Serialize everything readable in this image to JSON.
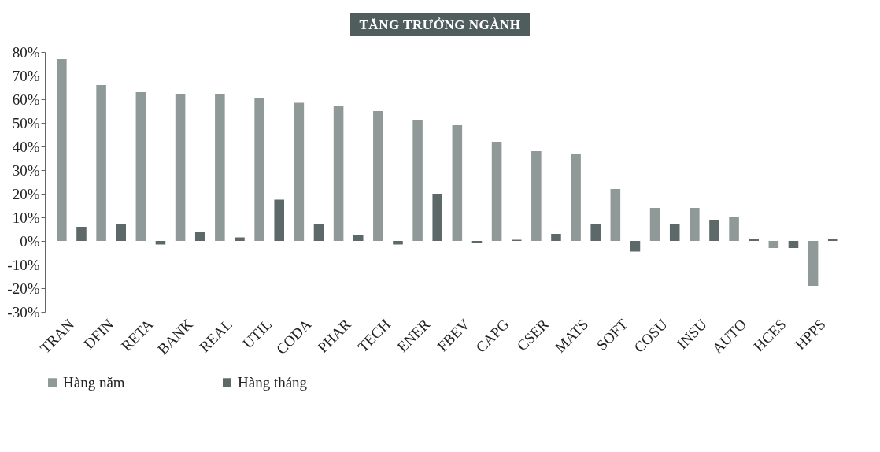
{
  "chart_data": {
    "type": "bar",
    "title": "TĂNG TRƯỞNG NGÀNH",
    "categories": [
      "TRAN",
      "DFIN",
      "RETA",
      "BANK",
      "REAL",
      "UTIL",
      "CODA",
      "PHAR",
      "TECH",
      "ENER",
      "FBEV",
      "CAPG",
      "CSER",
      "MATS",
      "SOFT",
      "COSU",
      "INSU",
      "AUTO",
      "HCES",
      "HPPS"
    ],
    "series": [
      {
        "name": "Hàng năm",
        "color": "#8f9a98",
        "values": [
          77,
          66,
          63,
          62,
          62,
          60.5,
          58.5,
          57,
          55,
          51,
          49,
          42,
          38,
          37,
          22,
          14,
          14,
          10,
          -3,
          -19
        ]
      },
      {
        "name": "Hàng tháng",
        "color": "#5d6968",
        "values": [
          6,
          7,
          -1.5,
          4,
          1.5,
          17.5,
          7,
          2.5,
          -1.5,
          20,
          -1,
          0.5,
          3,
          7,
          -4.5,
          7,
          9,
          1,
          -3,
          1
        ]
      }
    ],
    "ylim": [
      -30,
      80
    ],
    "yticks": [
      {
        "value": 80,
        "label": "80%"
      },
      {
        "value": 70,
        "label": "70%"
      },
      {
        "value": 60,
        "label": "60%"
      },
      {
        "value": 50,
        "label": "50%"
      },
      {
        "value": 40,
        "label": "40%"
      },
      {
        "value": 30,
        "label": "30%"
      },
      {
        "value": 20,
        "label": "20%"
      },
      {
        "value": 10,
        "label": "10%"
      },
      {
        "value": 0,
        "label": "0%"
      },
      {
        "value": -10,
        "label": "-10%"
      },
      {
        "value": -20,
        "label": "-20%"
      },
      {
        "value": -30,
        "label": "-30%"
      }
    ],
    "grid": false,
    "legend": "bottom"
  }
}
